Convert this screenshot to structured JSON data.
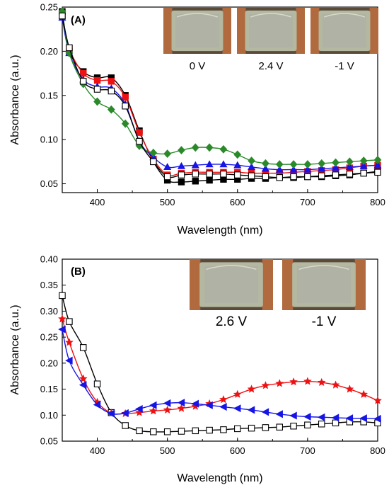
{
  "colors": {
    "black": "#000000",
    "red": "#ee1111",
    "blue": "#1515e6",
    "green": "#2a8a2a",
    "copper": "#b06a3e",
    "glass": "#b4b8a0"
  },
  "chart_data": [
    {
      "panel": "(A)",
      "type": "line",
      "xlabel": "Wavelength (nm)",
      "ylabel": "Absorbance (a.u.)",
      "xlim": [
        350,
        800
      ],
      "ylim": [
        0.04,
        0.25
      ],
      "xticks": [
        "400",
        "500",
        "600",
        "700",
        "800"
      ],
      "yticks": [
        "0.05",
        "0.10",
        "0.15",
        "0.20",
        "0.25"
      ],
      "ytick_values": [
        0.05,
        0.1,
        0.15,
        0.2,
        0.25
      ],
      "xtick_values": [
        400,
        500,
        600,
        700,
        800
      ],
      "photos": [
        {
          "label": "0 V",
          "icon": "device-photo-icon"
        },
        {
          "label": "2.4 V",
          "icon": "device-photo-icon"
        },
        {
          "label": "-1 V",
          "icon": "device-photo-icon"
        }
      ],
      "series": [
        {
          "color": "#000000",
          "marker": "square-filled",
          "x": [
            350,
            360,
            380,
            400,
            420,
            440,
            460,
            480,
            500,
            520,
            540,
            560,
            580,
            600,
            620,
            640,
            660,
            680,
            700,
            720,
            740,
            760,
            780,
            800
          ],
          "y": [
            0.245,
            0.2,
            0.177,
            0.17,
            0.17,
            0.15,
            0.11,
            0.075,
            0.054,
            0.052,
            0.053,
            0.054,
            0.055,
            0.055,
            0.056,
            0.056,
            0.057,
            0.057,
            0.058,
            0.058,
            0.059,
            0.06,
            0.062,
            0.064
          ]
        },
        {
          "color": "#ee1111",
          "marker": "square-filled",
          "x": [
            350,
            360,
            380,
            400,
            420,
            440,
            460,
            480,
            500,
            520,
            540,
            560,
            580,
            600,
            620,
            640,
            660,
            680,
            700,
            720,
            740,
            760,
            780,
            800
          ],
          "y": [
            0.24,
            0.203,
            0.175,
            0.167,
            0.166,
            0.148,
            0.108,
            0.078,
            0.06,
            0.062,
            0.063,
            0.063,
            0.063,
            0.063,
            0.062,
            0.062,
            0.062,
            0.063,
            0.064,
            0.065,
            0.066,
            0.068,
            0.07,
            0.071
          ]
        },
        {
          "color": "#1515e6",
          "marker": "triangle-up",
          "x": [
            350,
            360,
            380,
            400,
            420,
            440,
            460,
            480,
            500,
            520,
            540,
            560,
            580,
            600,
            620,
            640,
            660,
            680,
            700,
            720,
            740,
            760,
            780,
            800
          ],
          "y": [
            0.238,
            0.198,
            0.168,
            0.16,
            0.158,
            0.14,
            0.098,
            0.08,
            0.069,
            0.07,
            0.071,
            0.072,
            0.072,
            0.071,
            0.069,
            0.067,
            0.066,
            0.066,
            0.066,
            0.067,
            0.068,
            0.069,
            0.07,
            0.071
          ]
        },
        {
          "color": "#2a8a2a",
          "marker": "diamond",
          "x": [
            350,
            360,
            380,
            400,
            420,
            440,
            460,
            480,
            500,
            520,
            540,
            560,
            580,
            600,
            620,
            640,
            660,
            680,
            700,
            720,
            740,
            760,
            780,
            800
          ],
          "y": [
            0.245,
            0.198,
            0.163,
            0.143,
            0.134,
            0.118,
            0.093,
            0.085,
            0.084,
            0.088,
            0.091,
            0.091,
            0.089,
            0.083,
            0.076,
            0.073,
            0.072,
            0.072,
            0.072,
            0.073,
            0.074,
            0.075,
            0.076,
            0.077
          ]
        },
        {
          "color": "#000000",
          "marker": "square-open",
          "x": [
            350,
            360,
            380,
            400,
            420,
            440,
            460,
            480,
            500,
            520,
            540,
            560,
            580,
            600,
            620,
            640,
            660,
            680,
            700,
            720,
            740,
            760,
            780,
            800
          ],
          "y": [
            0.24,
            0.204,
            0.166,
            0.157,
            0.155,
            0.138,
            0.098,
            0.075,
            0.058,
            0.06,
            0.061,
            0.061,
            0.061,
            0.06,
            0.059,
            0.058,
            0.057,
            0.058,
            0.058,
            0.059,
            0.06,
            0.061,
            0.062,
            0.063
          ]
        }
      ]
    },
    {
      "panel": "(B)",
      "type": "line",
      "xlabel": "Wavelength (nm)",
      "ylabel": "Absorbance (a.u.)",
      "xlim": [
        350,
        800
      ],
      "ylim": [
        0.05,
        0.4
      ],
      "xticks": [
        "400",
        "500",
        "600",
        "700",
        "800"
      ],
      "yticks": [
        "0.05",
        "0.10",
        "0.15",
        "0.20",
        "0.25",
        "0.30",
        "0.35",
        "0.40"
      ],
      "ytick_values": [
        0.05,
        0.1,
        0.15,
        0.2,
        0.25,
        0.3,
        0.35,
        0.4
      ],
      "xtick_values": [
        400,
        500,
        600,
        700,
        800
      ],
      "photos": [
        {
          "label": "2.6 V",
          "icon": "device-photo-icon"
        },
        {
          "label": "-1 V",
          "icon": "device-photo-icon"
        }
      ],
      "series": [
        {
          "color": "#000000",
          "marker": "square-open",
          "x": [
            350,
            360,
            380,
            400,
            420,
            440,
            460,
            480,
            500,
            520,
            540,
            560,
            580,
            600,
            620,
            640,
            660,
            680,
            700,
            720,
            740,
            760,
            780,
            800
          ],
          "y": [
            0.33,
            0.28,
            0.23,
            0.16,
            0.105,
            0.08,
            0.07,
            0.068,
            0.068,
            0.069,
            0.07,
            0.071,
            0.072,
            0.074,
            0.075,
            0.076,
            0.077,
            0.079,
            0.081,
            0.083,
            0.085,
            0.087,
            0.087,
            0.085
          ]
        },
        {
          "color": "#ee1111",
          "marker": "star",
          "x": [
            350,
            360,
            380,
            400,
            420,
            440,
            460,
            480,
            500,
            520,
            540,
            560,
            580,
            600,
            620,
            640,
            660,
            680,
            700,
            720,
            740,
            760,
            780,
            800
          ],
          "y": [
            0.285,
            0.24,
            0.17,
            0.125,
            0.104,
            0.103,
            0.105,
            0.108,
            0.11,
            0.113,
            0.117,
            0.122,
            0.13,
            0.14,
            0.15,
            0.157,
            0.161,
            0.164,
            0.165,
            0.163,
            0.158,
            0.15,
            0.14,
            0.128
          ]
        },
        {
          "color": "#1515e6",
          "marker": "triangle-left",
          "x": [
            350,
            360,
            380,
            400,
            420,
            440,
            460,
            480,
            500,
            520,
            540,
            560,
            580,
            600,
            620,
            640,
            660,
            680,
            700,
            720,
            740,
            760,
            780,
            800
          ],
          "y": [
            0.265,
            0.205,
            0.158,
            0.12,
            0.103,
            0.104,
            0.112,
            0.119,
            0.123,
            0.124,
            0.122,
            0.119,
            0.116,
            0.113,
            0.11,
            0.106,
            0.102,
            0.099,
            0.097,
            0.096,
            0.095,
            0.094,
            0.094,
            0.093
          ]
        }
      ]
    }
  ]
}
